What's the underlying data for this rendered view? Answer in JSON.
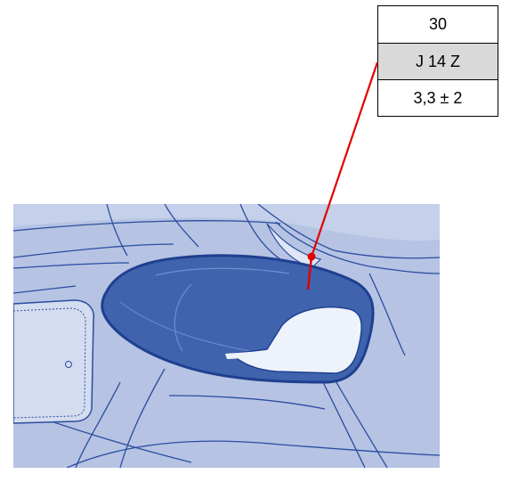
{
  "spec_table": {
    "rows": [
      "30",
      "J  14 Z",
      "3,3 ± 2"
    ]
  },
  "colors": {
    "panel_background": "#b6c3e2",
    "lamp_fill": "#3f64ad",
    "outline": "#2a4da0",
    "leader_line": "#e30000",
    "table_highlight": "#d9d9d9"
  }
}
